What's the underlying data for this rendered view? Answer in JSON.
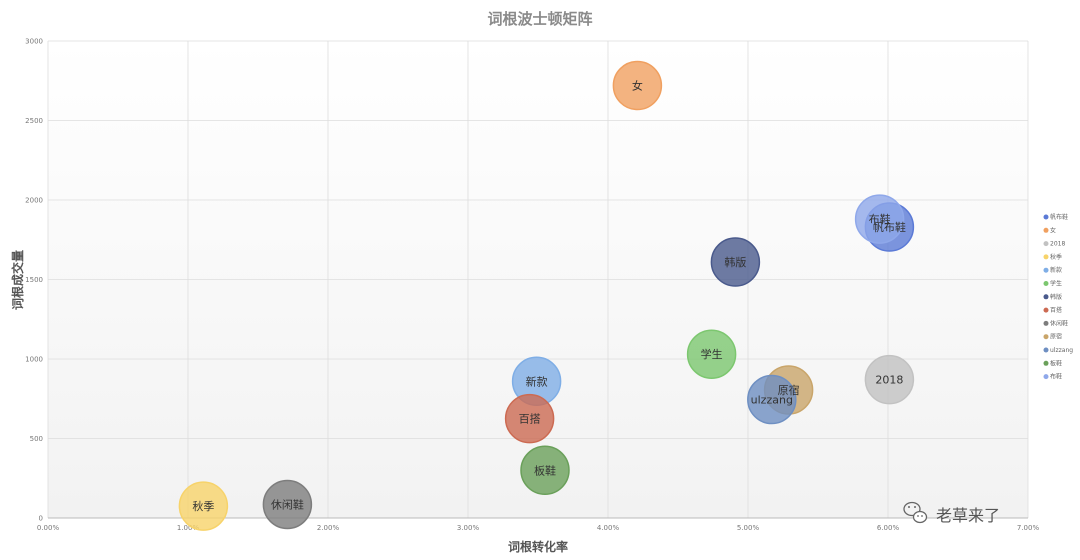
{
  "chart_data": {
    "type": "scatter",
    "title": "词根波士顿矩阵",
    "xlabel": "词根转化率",
    "ylabel": "词根成交量",
    "xlim": [
      0,
      0.07
    ],
    "ylim": [
      0,
      3000
    ],
    "x_ticks": [
      "0.00%",
      "1.00%",
      "2.00%",
      "3.00%",
      "4.00%",
      "5.00%",
      "6.00%",
      "7.00%"
    ],
    "y_ticks": [
      "0",
      "500",
      "1000",
      "1500",
      "2000",
      "2500",
      "3000"
    ],
    "grid": true,
    "legend_position": "right",
    "points": [
      {
        "name": "帆布鞋",
        "label": "帆布鞋",
        "x": 0.0601,
        "y": 1830,
        "color": "#5b7ad6"
      },
      {
        "name": "女",
        "label": "女",
        "x": 0.0421,
        "y": 2720,
        "color": "#f0a060"
      },
      {
        "name": "2018",
        "label": "2018",
        "x": 0.0601,
        "y": 870,
        "color": "#c2c2c2"
      },
      {
        "name": "秋季",
        "label": "秋季",
        "x": 0.0111,
        "y": 75,
        "color": "#f7d36a"
      },
      {
        "name": "新款",
        "label": "新款",
        "x": 0.0349,
        "y": 860,
        "color": "#7faee6"
      },
      {
        "name": "学生",
        "label": "学生",
        "x": 0.0474,
        "y": 1030,
        "color": "#7cc76f"
      },
      {
        "name": "韩版",
        "label": "韩版",
        "x": 0.0491,
        "y": 1610,
        "color": "#4a5a8c"
      },
      {
        "name": "百搭",
        "label": "百搭",
        "x": 0.0344,
        "y": 625,
        "color": "#cc6a52"
      },
      {
        "name": "休闲鞋",
        "label": "休闲鞋",
        "x": 0.0171,
        "y": 85,
        "color": "#7d7d7d"
      },
      {
        "name": "原宿",
        "label": "原宿",
        "x": 0.0529,
        "y": 805,
        "color": "#c9a56a"
      },
      {
        "name": "ulzzang",
        "label": "ulzzang",
        "x": 0.0517,
        "y": 745,
        "color": "#6e8fc2"
      },
      {
        "name": "板鞋",
        "label": "板鞋",
        "x": 0.0355,
        "y": 300,
        "color": "#6aa05a"
      },
      {
        "name": "布鞋",
        "label": "布鞋",
        "x": 0.0594,
        "y": 1880,
        "color": "#8fa8ea"
      }
    ]
  },
  "watermark": {
    "text": "老草来了",
    "icon": "wechat-icon"
  }
}
